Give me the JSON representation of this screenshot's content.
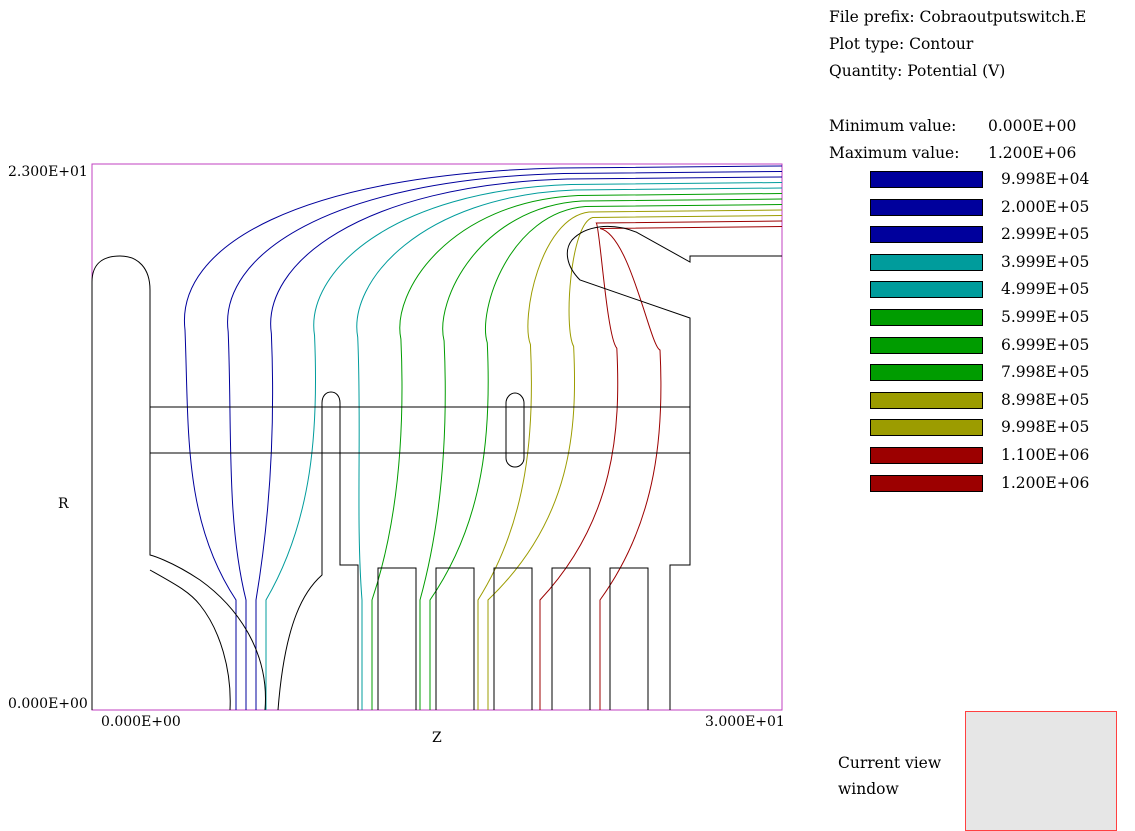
{
  "info": {
    "file_prefix": "File prefix: Cobraoutputswitch.E",
    "plot_type": "Plot type: Contour",
    "quantity": "Quantity: Potential (V)",
    "min_label": "Minimum value:",
    "min_value": "0.000E+00",
    "max_label": "Maximum value:",
    "max_value": "1.200E+06"
  },
  "current_view": {
    "line1": "Current view",
    "line2": "window"
  },
  "colors": {
    "frame": "#c040c0",
    "electrode": "#000000",
    "view_box_fill": "#e6e6e6",
    "view_box_border": "#ff4040"
  },
  "chart_data": {
    "type": "contour",
    "xlabel": "Z",
    "ylabel": "R",
    "xlim": [
      0,
      30
    ],
    "ylim": [
      0,
      23
    ],
    "x_tick_labels": [
      "0.000E+00",
      "3.000E+01"
    ],
    "y_tick_labels": [
      "0.000E+00",
      "2.300E+01"
    ],
    "quantity": "Potential (V)",
    "min_value": 0,
    "max_value": 1200000,
    "levels": [
      {
        "label": "9.998E+04",
        "value": 99980,
        "color": "#00009c"
      },
      {
        "label": "2.000E+05",
        "value": 200000,
        "color": "#00009c"
      },
      {
        "label": "2.999E+05",
        "value": 299900,
        "color": "#00009c"
      },
      {
        "label": "3.999E+05",
        "value": 399900,
        "color": "#009c9c"
      },
      {
        "label": "4.999E+05",
        "value": 499900,
        "color": "#009c9c"
      },
      {
        "label": "5.999E+05",
        "value": 599900,
        "color": "#009c00"
      },
      {
        "label": "6.999E+05",
        "value": 699900,
        "color": "#009c00"
      },
      {
        "label": "7.998E+05",
        "value": 799800,
        "color": "#009c00"
      },
      {
        "label": "8.998E+05",
        "value": 899800,
        "color": "#9c9c00"
      },
      {
        "label": "9.998E+05",
        "value": 999800,
        "color": "#9c9c00"
      },
      {
        "label": "1.100E+06",
        "value": 1100000,
        "color": "#9c0000"
      },
      {
        "label": "1.200E+06",
        "value": 1200000,
        "color": "#9c0000"
      }
    ]
  }
}
